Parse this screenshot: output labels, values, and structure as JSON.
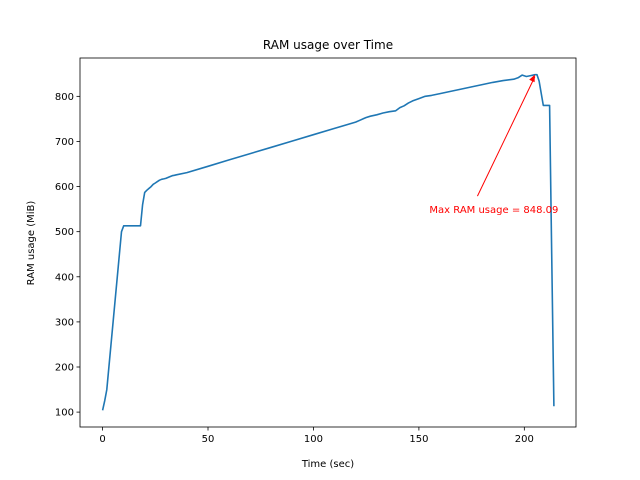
{
  "chart_data": {
    "type": "line",
    "title": "RAM usage over Time",
    "xlabel": "Time (sec)",
    "ylabel": "RAM usage (MiB)",
    "xlim": [
      -10.7,
      224.5
    ],
    "ylim": [
      67,
      885
    ],
    "xticks": [
      0,
      50,
      100,
      150,
      200
    ],
    "yticks": [
      100,
      200,
      300,
      400,
      500,
      600,
      700,
      800
    ],
    "grid": false,
    "legend": "none",
    "series": [
      {
        "color": "#1f77b4",
        "x": [
          0,
          1,
          2,
          3,
          4,
          5,
          6,
          7,
          8,
          9,
          10,
          11,
          12,
          13,
          14,
          15,
          16,
          17,
          18,
          19,
          20,
          21,
          22,
          23,
          24,
          25,
          26,
          27,
          28,
          29,
          30,
          31,
          32,
          33,
          34,
          35,
          40,
          50,
          60,
          70,
          80,
          90,
          100,
          110,
          120,
          122,
          124,
          125,
          127,
          130,
          133,
          136,
          139,
          141,
          143,
          145,
          147,
          150,
          153,
          156,
          160,
          165,
          170,
          175,
          180,
          185,
          190,
          195,
          197,
          199,
          201,
          203,
          205,
          206,
          207,
          209,
          211,
          212,
          213,
          214
        ],
        "y": [
          104,
          125,
          150,
          200,
          250,
          300,
          350,
          400,
          450,
          500,
          513,
          513,
          513,
          513,
          513,
          513,
          513,
          513,
          513,
          560,
          587,
          592,
          596,
          600,
          605,
          608,
          611,
          614,
          616,
          617,
          618,
          620,
          622,
          624,
          625,
          626,
          631,
          645,
          659,
          673,
          687,
          701,
          715,
          729,
          743,
          747,
          751,
          753,
          756,
          759,
          763,
          766,
          768,
          775,
          779,
          785,
          790,
          795,
          800,
          802,
          806,
          811,
          816,
          821,
          826,
          831,
          835,
          838,
          841,
          847,
          844,
          846,
          848,
          848,
          834,
          780,
          780,
          780,
          450,
          113
        ]
      }
    ],
    "annotation": {
      "text": "Max RAM usage = 848.09",
      "color": "#ff0000",
      "point": [
        205,
        848.09
      ],
      "text_anchor": [
        155,
        550
      ]
    }
  }
}
